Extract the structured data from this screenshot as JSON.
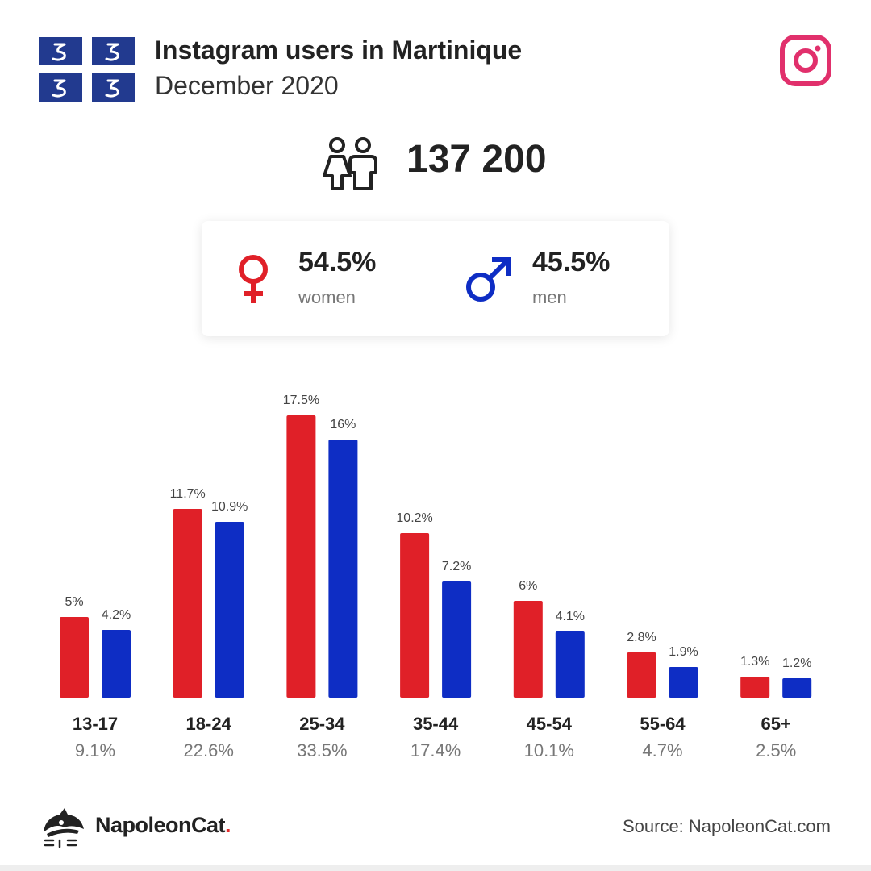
{
  "header": {
    "title": "Instagram users in Martinique",
    "subtitle": "December 2020"
  },
  "total": {
    "value": "137 200"
  },
  "gender": {
    "women": {
      "pct": "54.5%",
      "label": "women"
    },
    "men": {
      "pct": "45.5%",
      "label": "men"
    }
  },
  "colors": {
    "women": "#e02028",
    "men": "#0e2dc4",
    "instagram": "#e1306c",
    "flag": "#223a8f"
  },
  "icons": [
    "flag-icon",
    "instagram-icon",
    "people-icon",
    "female-symbol-icon",
    "male-symbol-icon",
    "napoleoncat-logo-icon"
  ],
  "chart_data": {
    "type": "bar",
    "categories": [
      "13-17",
      "18-24",
      "25-34",
      "35-44",
      "45-54",
      "55-64",
      "65+"
    ],
    "category_totals": [
      "9.1%",
      "22.6%",
      "33.5%",
      "17.4%",
      "10.1%",
      "4.7%",
      "2.5%"
    ],
    "series": [
      {
        "values": [
          5,
          11.7,
          17.5,
          10.2,
          6,
          2.8,
          1.3
        ],
        "labels": [
          "5%",
          "11.7%",
          "17.5%",
          "10.2%",
          "6%",
          "2.8%",
          "1.3%"
        ],
        "color": "#e02028"
      },
      {
        "values": [
          4.2,
          10.9,
          16,
          7.2,
          4.1,
          1.9,
          1.2
        ],
        "labels": [
          "4.2%",
          "10.9%",
          "16%",
          "7.2%",
          "4.1%",
          "1.9%",
          "1.2%"
        ],
        "color": "#0e2dc4"
      }
    ],
    "ylim": [
      0,
      17.5
    ],
    "grid": false,
    "legend": "none"
  },
  "footer": {
    "brand": "NapoleonCat",
    "brand_dot": ".",
    "source": "Source: NapoleonCat.com"
  }
}
